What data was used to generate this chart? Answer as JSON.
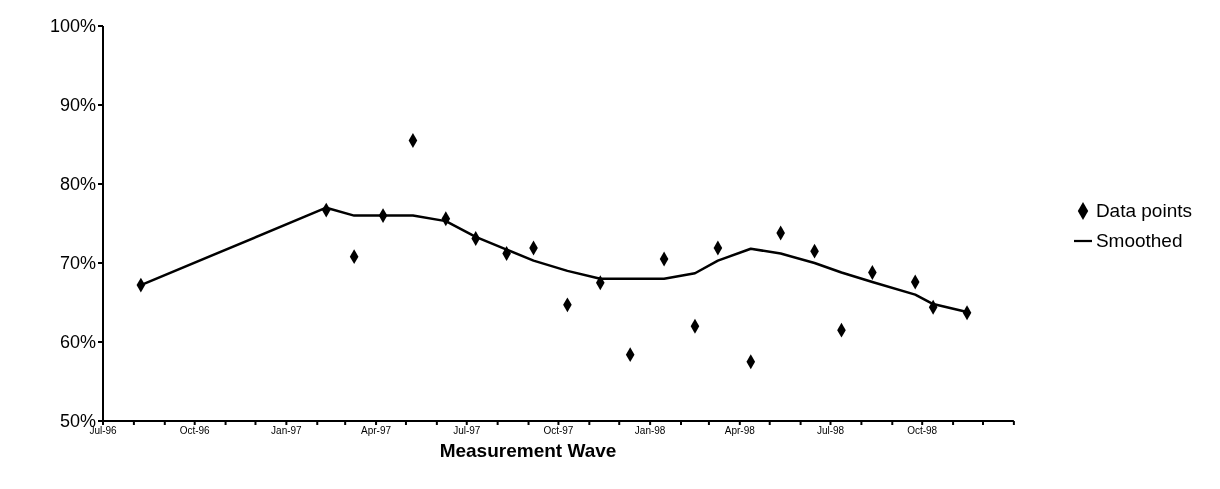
{
  "chart_data": {
    "type": "scatter",
    "xlabel": "Measurement Wave",
    "x": [
      "1996-08-08",
      "1997-02-10",
      "1997-03-10",
      "1997-04-08",
      "1997-05-08",
      "1997-06-10",
      "1997-07-10",
      "1997-08-10",
      "1997-09-06",
      "1997-10-10",
      "1997-11-12",
      "1997-12-12",
      "1998-01-15",
      "1998-02-15",
      "1998-03-10",
      "1998-04-12",
      "1998-05-12",
      "1998-06-15",
      "1998-07-12",
      "1998-08-12",
      "1998-09-24",
      "1998-10-12",
      "1998-11-15"
    ],
    "series": [
      {
        "name": "Data points",
        "color": "#000000",
        "marker": "diamond",
        "values": [
          67.2,
          76.7,
          70.8,
          76.0,
          85.5,
          75.6,
          73.1,
          71.2,
          71.9,
          64.7,
          67.5,
          58.4,
          70.5,
          62.0,
          71.9,
          57.5,
          73.8,
          71.5,
          61.5,
          68.8,
          67.6,
          64.4,
          63.7
        ]
      },
      {
        "name": "Smoothed",
        "type": "line",
        "color": "#000000",
        "marker": "none",
        "line_style": "solid",
        "values": [
          67.2,
          77.0,
          76.0,
          76.0,
          76.0,
          75.3,
          73.3,
          71.7,
          70.3,
          69.0,
          68.0,
          68.0,
          68.0,
          68.7,
          70.3,
          71.8,
          71.2,
          70.0,
          68.8,
          67.6,
          66.0,
          64.8,
          63.8
        ]
      }
    ],
    "xlim": [
      "1996-07",
      "1999-01"
    ],
    "xticks": [
      {
        "value": "1996-07",
        "label": "Jul-96"
      },
      {
        "value": "1996-08",
        "label": null
      },
      {
        "value": "1996-09",
        "label": null
      },
      {
        "value": "1996-10",
        "label": "Oct-96"
      },
      {
        "value": "1996-11",
        "label": null
      },
      {
        "value": "1996-12",
        "label": null
      },
      {
        "value": "1997-01",
        "label": "Jan-97"
      },
      {
        "value": "1997-02",
        "label": null
      },
      {
        "value": "1997-03",
        "label": null
      },
      {
        "value": "1997-04",
        "label": "Apr-97"
      },
      {
        "value": "1997-05",
        "label": null
      },
      {
        "value": "1997-06",
        "label": null
      },
      {
        "value": "1997-07",
        "label": "Jul-97"
      },
      {
        "value": "1997-08",
        "label": null
      },
      {
        "value": "1997-09",
        "label": null
      },
      {
        "value": "1997-10",
        "label": "Oct-97"
      },
      {
        "value": "1997-11",
        "label": null
      },
      {
        "value": "1997-12",
        "label": null
      },
      {
        "value": "1998-01",
        "label": "Jan-98"
      },
      {
        "value": "1998-02",
        "label": null
      },
      {
        "value": "1998-03",
        "label": null
      },
      {
        "value": "1998-04",
        "label": "Apr-98"
      },
      {
        "value": "1998-05",
        "label": null
      },
      {
        "value": "1998-06",
        "label": null
      },
      {
        "value": "1998-07",
        "label": "Jul-98"
      },
      {
        "value": "1998-08",
        "label": null
      },
      {
        "value": "1998-09",
        "label": null
      },
      {
        "value": "1998-10",
        "label": "Oct-98"
      },
      {
        "value": "1998-11",
        "label": null
      },
      {
        "value": "1998-12",
        "label": null
      },
      {
        "value": "1999-01",
        "label": null
      }
    ],
    "ylim": [
      50,
      100
    ],
    "yticks": [
      {
        "value": 50,
        "label": "50%"
      },
      {
        "value": 60,
        "label": "60%"
      },
      {
        "value": 70,
        "label": "70%"
      },
      {
        "value": 80,
        "label": "80%"
      },
      {
        "value": 90,
        "label": "90%"
      },
      {
        "value": 100,
        "label": "100%"
      }
    ],
    "grid": false,
    "legend": "right"
  }
}
